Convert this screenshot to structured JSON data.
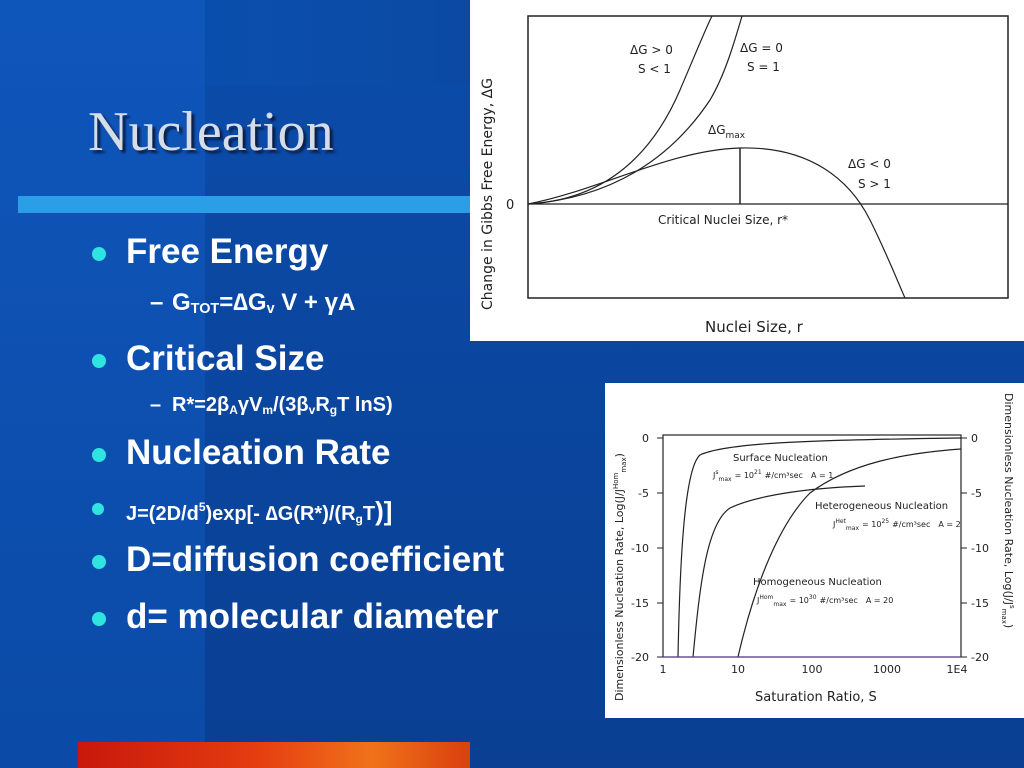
{
  "slide": {
    "title": "Nucleation",
    "colors": {
      "bullet": "#2fe3e0",
      "title_bar": "#2a9ee6",
      "background": "#0b4ea8"
    }
  },
  "bullets": {
    "free_energy": "Free Energy",
    "gtot": {
      "g": "G",
      "tot": "TOT",
      "eq": "=",
      "delta": "∆",
      "gv": "G",
      "v": "v",
      "rest1": " V + ",
      "gamma": "γ",
      "a": "A"
    },
    "critical_size": "Critical Size",
    "rstar": {
      "r": "R*=2",
      "beta": "β",
      "sA": "A",
      "gamma": "γ",
      "v": "V",
      "sm": "m",
      "open": "/(3",
      "beta2": "β",
      "sv": "v",
      "rg": "R",
      "sg": "g",
      "tail": "T lnS)"
    },
    "nucleation_rate": "Nucleation Rate",
    "jformula": {
      "a": "J=(2D/d",
      "sup5": "5",
      "b": ")exp[- ",
      "delta": "∆",
      "c": "G(R*)/(R",
      "sg": "g",
      "d": "T",
      "e": ")]"
    },
    "diffusion": "D=diffusion coefficient",
    "diameter": "d= molecular diameter"
  },
  "figure_top": {
    "ylabel": "Change in Gibbs Free Energy, ΔG",
    "xlabel": "Nuclei Size, r",
    "zero_label": "0",
    "curve_a_l1": "ΔG > 0",
    "curve_a_l2": "S < 1",
    "curve_b_l1": "ΔG = 0",
    "curve_b_l2": "S = 1",
    "dgmax": "ΔG",
    "dgmax_sub": "max",
    "curve_c_l1": "ΔG < 0",
    "curve_c_l2": "S > 1",
    "critical": "Critical Nuclei Size, r*"
  },
  "figure_bottom": {
    "ylabel_left": "Dimensionless Nucleation Rate, Log(J/J",
    "ylabel_left_sup": "Hom",
    "ylabel_left_sub": "max",
    "ylabel_left_end": ")",
    "ylabel_right": "Dimensionless Nucleation Rate, Log(J/J",
    "ylabel_right_sup": "s",
    "ylabel_right_sub": "max",
    "ylabel_right_end": ")",
    "xlabel": "Saturation Ratio, S",
    "yticks": [
      "0",
      "-5",
      "-10",
      "-15",
      "-20"
    ],
    "xticks": [
      "1",
      "10",
      "100",
      "1000",
      "1E4"
    ],
    "surface": "Surface Nucleation",
    "surface_j": "J",
    "surface_j_sup": "s",
    "surface_j_sub": "max",
    "surface_val": "= 10",
    "surface_exp": "21",
    "surface_unit": "#/cm³sec",
    "surface_a": "A = 1",
    "hetero": "Heterogeneous Nucleation",
    "hetero_j": "J",
    "hetero_j_sup": "Het",
    "hetero_j_sub": "max",
    "hetero_val": "= 10",
    "hetero_exp": "25",
    "hetero_unit": "#/cm³sec",
    "hetero_a": "A = 2",
    "homo": "Homogeneous Nucleation",
    "homo_j": "J",
    "homo_j_sup": "Hom",
    "homo_j_sub": "max",
    "homo_val": "= 10",
    "homo_exp": "30",
    "homo_unit": "#/cm³sec",
    "homo_a": "A = 20"
  }
}
